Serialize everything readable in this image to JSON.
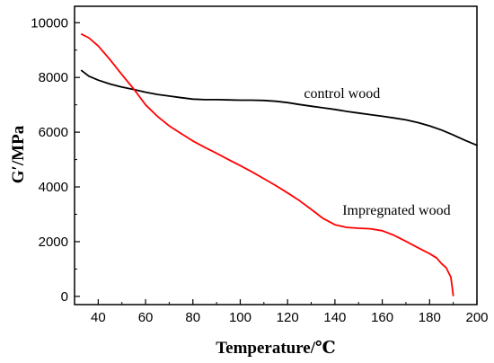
{
  "chart_data": {
    "type": "line",
    "title": "",
    "xlabel": "Temperature/℃",
    "ylabel": "G′/MPa",
    "xlim": [
      30,
      200
    ],
    "ylim": [
      -300,
      10600
    ],
    "x_ticks": [
      40,
      60,
      80,
      100,
      120,
      140,
      160,
      180,
      200
    ],
    "y_ticks": [
      0,
      2000,
      4000,
      6000,
      8000,
      10000
    ],
    "grid": false,
    "legend": "none",
    "series": [
      {
        "name": "control wood",
        "color": "#000000",
        "label_at": [
          143,
          7250
        ],
        "points": [
          [
            33,
            8250
          ],
          [
            36,
            8050
          ],
          [
            40,
            7900
          ],
          [
            45,
            7760
          ],
          [
            50,
            7650
          ],
          [
            55,
            7560
          ],
          [
            60,
            7460
          ],
          [
            65,
            7380
          ],
          [
            70,
            7320
          ],
          [
            75,
            7260
          ],
          [
            80,
            7210
          ],
          [
            85,
            7190
          ],
          [
            90,
            7190
          ],
          [
            95,
            7180
          ],
          [
            100,
            7170
          ],
          [
            105,
            7170
          ],
          [
            110,
            7160
          ],
          [
            115,
            7130
          ],
          [
            120,
            7080
          ],
          [
            125,
            7010
          ],
          [
            130,
            6950
          ],
          [
            135,
            6890
          ],
          [
            140,
            6830
          ],
          [
            145,
            6760
          ],
          [
            150,
            6700
          ],
          [
            155,
            6640
          ],
          [
            160,
            6580
          ],
          [
            165,
            6520
          ],
          [
            170,
            6450
          ],
          [
            175,
            6350
          ],
          [
            180,
            6230
          ],
          [
            185,
            6080
          ],
          [
            190,
            5900
          ],
          [
            195,
            5700
          ],
          [
            200,
            5520
          ]
        ]
      },
      {
        "name": "Impregnated wood",
        "color": "#ff0000",
        "label_at": [
          166,
          2980
        ],
        "points": [
          [
            33,
            9580
          ],
          [
            36,
            9450
          ],
          [
            40,
            9150
          ],
          [
            45,
            8650
          ],
          [
            50,
            8100
          ],
          [
            55,
            7580
          ],
          [
            60,
            7000
          ],
          [
            65,
            6580
          ],
          [
            70,
            6230
          ],
          [
            75,
            5950
          ],
          [
            80,
            5680
          ],
          [
            85,
            5450
          ],
          [
            90,
            5230
          ],
          [
            95,
            5000
          ],
          [
            100,
            4780
          ],
          [
            105,
            4550
          ],
          [
            110,
            4300
          ],
          [
            115,
            4050
          ],
          [
            120,
            3780
          ],
          [
            125,
            3500
          ],
          [
            130,
            3180
          ],
          [
            135,
            2850
          ],
          [
            140,
            2620
          ],
          [
            145,
            2520
          ],
          [
            150,
            2490
          ],
          [
            155,
            2470
          ],
          [
            160,
            2400
          ],
          [
            165,
            2230
          ],
          [
            170,
            2010
          ],
          [
            175,
            1780
          ],
          [
            180,
            1560
          ],
          [
            183,
            1400
          ],
          [
            185,
            1200
          ],
          [
            187,
            1050
          ],
          [
            189,
            700
          ],
          [
            189.6,
            300
          ],
          [
            190,
            30
          ]
        ]
      }
    ]
  }
}
